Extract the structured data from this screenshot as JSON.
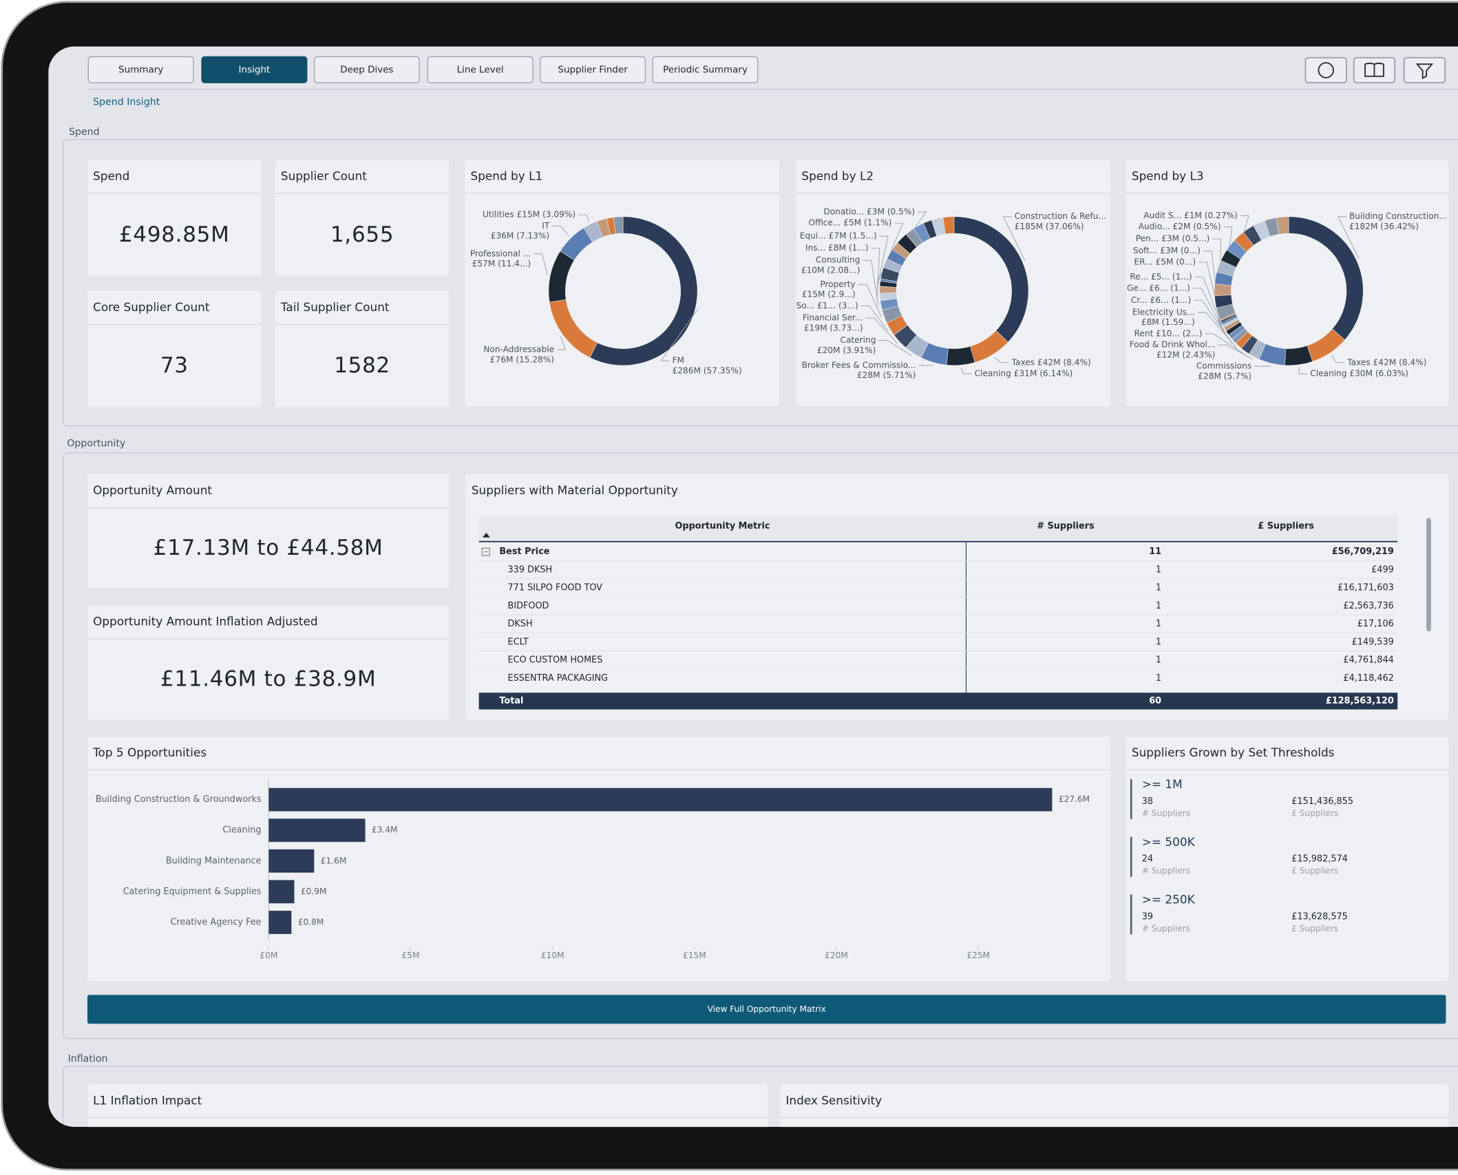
{
  "nav": {
    "tabs": [
      "Summary",
      "Insight",
      "Deep Dives",
      "Line Level",
      "Supplier Finder",
      "Periodic Summary"
    ],
    "active_tab": 1
  },
  "breadcrumb": "Spend Insight",
  "sections": [
    "Spend",
    "Opportunity",
    "Inflation"
  ],
  "kpis": [
    {
      "title": "Spend",
      "value": "£498.85M"
    },
    {
      "title": "Supplier Count",
      "value": "1,655"
    },
    {
      "title": "Core Supplier Count",
      "value": "73"
    },
    {
      "title": "Tail Supplier Count",
      "value": "1582"
    }
  ],
  "donuts": [
    {
      "title": "Spend by L1",
      "segments": [
        {
          "name": "FM",
          "label": "£286M (57.35%)",
          "value": 57.35,
          "color": "#2c3b57"
        },
        {
          "name": "Non-Addressable",
          "label": "£76M (15.28%)",
          "value": 15.28,
          "color": "#d97a3a"
        },
        {
          "name": "Professional ...",
          "label": "£57M (11.4...)",
          "value": 11.4,
          "color": "#1e2833"
        },
        {
          "name": "IT",
          "label": "£36M (7.13%)",
          "value": 7.13,
          "color": "#5a7db3"
        },
        {
          "label": "Utilities £15M (3.09%)",
          "value": 3.09,
          "color": "#a8b7cc"
        },
        {
          "value": 2.2,
          "color": "#c49a7a"
        },
        {
          "value": 1.5,
          "color": "#d97a3a"
        },
        {
          "value": 2.05,
          "color": "#8a96a8"
        }
      ]
    },
    {
      "title": "Spend by L2",
      "segments": [
        {
          "name": "Construction & Refu...",
          "label": "£185M (37.06%)",
          "value": 37.06,
          "color": "#2c3b57"
        },
        {
          "label": "Taxes £42M (8.4%)",
          "value": 8.4,
          "color": "#d97a3a"
        },
        {
          "label": "Cleaning £31M (6.14%)",
          "value": 6.14,
          "color": "#1e2833"
        },
        {
          "name": "Broker Fees & Commissio...",
          "label": "£28M (5.71%)",
          "value": 5.71,
          "color": "#5a7db3"
        },
        {
          "name": "Catering",
          "label": "£20M (3.91%)",
          "value": 3.91,
          "color": "#a8b7cc"
        },
        {
          "name": "Financial Ser...",
          "label": "£19M (3.73...)",
          "value": 3.73,
          "color": "#3a4a63"
        },
        {
          "label": "So... £1... (3...)",
          "value": 3,
          "color": "#d97a3a"
        },
        {
          "name": "Property",
          "label": "£15M (2.9...)",
          "value": 2.9,
          "color": "#8a96a8"
        },
        {
          "name": "Consulting",
          "label": "£10M (2.08...)",
          "value": 2.08,
          "color": "#6d8fc2"
        },
        {
          "label": "Ins... £8M (1...)",
          "value": 1.6,
          "color": "#c3cede"
        },
        {
          "label": "Equi... £7M (1.5...)",
          "value": 1.5,
          "color": "#c49a7a"
        },
        {
          "label": "Office... £5M (1.1%)",
          "value": 1.1,
          "color": "#1e2833"
        },
        {
          "label": "Donatio... £3M (0.5%)",
          "value": 0.5,
          "color": "#5a7db3"
        },
        {
          "value": 2.5,
          "color": "#3a4a63"
        },
        {
          "value": 2,
          "color": "#a8b7cc"
        },
        {
          "value": 2.3,
          "color": "#5a7db3"
        },
        {
          "value": 1.8,
          "color": "#c49a7a"
        },
        {
          "value": 2.6,
          "color": "#1e2833"
        },
        {
          "value": 2,
          "color": "#8a96a8"
        },
        {
          "value": 2.4,
          "color": "#6d8fc2"
        },
        {
          "value": 1.9,
          "color": "#2c3b57"
        },
        {
          "value": 2.5,
          "color": "#c3cede"
        },
        {
          "value": 2.37,
          "color": "#d97a3a"
        }
      ]
    },
    {
      "title": "Spend by L3",
      "segments": [
        {
          "name": "Building Construction...",
          "label": "£182M (36.42%)",
          "value": 36.42,
          "color": "#2c3b57"
        },
        {
          "label": "Taxes £42M (8.4%)",
          "value": 8.4,
          "color": "#d97a3a"
        },
        {
          "label": "Cleaning £30M (6.03%)",
          "value": 6.03,
          "color": "#1e2833"
        },
        {
          "name": "Commissions",
          "label": "£28M (5.7%)",
          "value": 5.7,
          "color": "#5a7db3"
        },
        {
          "name": "Food & Drink Whol...",
          "label": "£12M (2.43%)",
          "value": 2.43,
          "color": "#a8b7cc"
        },
        {
          "label": "Rent £10... (2...)",
          "value": 2.0,
          "color": "#3a4a63"
        },
        {
          "name": "Electricity Us...",
          "label": "£8M (1.59...)",
          "value": 1.59,
          "color": "#d97a3a"
        },
        {
          "label": "Cr... £6... (1...)",
          "value": 1.2,
          "color": "#8a96a8"
        },
        {
          "label": "Ge... £6... (1...)",
          "value": 1.2,
          "color": "#6d8fc2"
        },
        {
          "label": "Re... £5... (1...)",
          "value": 1.0,
          "color": "#1e2833"
        },
        {
          "label": "ER... £5M (0...)",
          "value": 0.9,
          "color": "#c49a7a"
        },
        {
          "label": "Soft... £3M (0...)",
          "value": 0.6,
          "color": "#c3cede"
        },
        {
          "label": "Pen... £3M (0.5...)",
          "value": 0.5,
          "color": "#5a7db3"
        },
        {
          "label": "Audio... £2M (0.5%)",
          "value": 0.5,
          "color": "#3a4a63"
        },
        {
          "label": "Audit S... £1M (0.27%)",
          "value": 0.27,
          "color": "#d97a3a"
        },
        {
          "value": 2.6,
          "color": "#8a96a8"
        },
        {
          "value": 2.6,
          "color": "#2c3b57"
        },
        {
          "value": 2.6,
          "color": "#c49a7a"
        },
        {
          "value": 2.6,
          "color": "#5a7db3"
        },
        {
          "value": 2.6,
          "color": "#a8b7cc"
        },
        {
          "value": 2.6,
          "color": "#1e2833"
        },
        {
          "value": 2.6,
          "color": "#6d8fc2"
        },
        {
          "value": 2.6,
          "color": "#d97a3a"
        },
        {
          "value": 2.6,
          "color": "#3a4a63"
        },
        {
          "value": 2.6,
          "color": "#c3cede"
        },
        {
          "value": 2.6,
          "color": "#8a96a8"
        },
        {
          "value": 2.66,
          "color": "#c49a7a"
        }
      ]
    }
  ],
  "opportunity": [
    {
      "title": "Opportunity Amount",
      "value": "£17.13M to £44.58M"
    },
    {
      "title": "Opportunity Amount Inflation Adjusted",
      "value": "£11.46M to £38.9M"
    }
  ],
  "table": {
    "title": "Suppliers with Material Opportunity",
    "columns": [
      "Opportunity Metric",
      "# Suppliers",
      "£ Suppliers"
    ],
    "group": [
      "Best Price",
      "11",
      "£56,709,219"
    ],
    "rows": [
      [
        "339 DKSH",
        "1",
        "£499"
      ],
      [
        "771 SILPO FOOD TOV",
        "1",
        "£16,171,603"
      ],
      [
        "BIDFOOD",
        "1",
        "£2,563,736"
      ],
      [
        "DKSH",
        "1",
        "£17,106"
      ],
      [
        "ECLT",
        "1",
        "£149,539"
      ],
      [
        "ECO CUSTOM HOMES",
        "1",
        "£4,761,844"
      ],
      [
        "ESSENTRA PACKAGING",
        "1",
        "£4,118,462"
      ]
    ],
    "total": [
      "Total",
      "60",
      "£128,563,120"
    ]
  },
  "top5": {
    "type": "bar",
    "title": "Top 5 Opportunities",
    "categories": [
      "Building Construction & Groundworks",
      "Cleaning",
      "Building Maintenance",
      "Catering Equipment & Supplies",
      "Creative Agency Fee"
    ],
    "values": [
      27.6,
      3.4,
      1.6,
      0.9,
      0.8
    ],
    "value_labels": [
      "£27.6M",
      "£3.4M",
      "£1.6M",
      "£0.9M",
      "£0.8M"
    ],
    "color": "#2c3b57",
    "xlim": [
      0,
      28.5
    ],
    "xticks": [
      {
        "value": 0,
        "label": "£0M"
      },
      {
        "value": 5,
        "label": "£5M"
      },
      {
        "value": 10,
        "label": "£10M"
      },
      {
        "value": 15,
        "label": "£15M"
      },
      {
        "value": 20,
        "label": "£20M"
      },
      {
        "value": 25,
        "label": "£25M"
      }
    ]
  },
  "thresholds": {
    "title": "Suppliers Grown by Set Thresholds",
    "items": [
      {
        "label": ">= 1M",
        "count": "38",
        "count_label": "# Suppliers",
        "amount": "£151,436,855",
        "amount_label": "£ Suppliers"
      },
      {
        "label": ">= 500K",
        "count": "24",
        "count_label": "# Suppliers",
        "amount": "£15,982,574",
        "amount_label": "£ Suppliers"
      },
      {
        "label": ">= 250K",
        "count": "39",
        "count_label": "# Suppliers",
        "amount": "£13,628,575",
        "amount_label": "£ Suppliers"
      }
    ]
  },
  "button": "View Full Opportunity Matrix",
  "inflation_cards": [
    "L1 Inflation Impact",
    "Index Sensitivity"
  ]
}
